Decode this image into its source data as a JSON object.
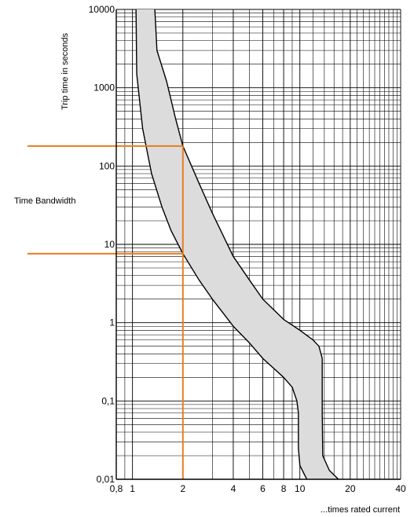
{
  "chart_data": {
    "type": "area",
    "title": "",
    "xlabel": "...times rated current",
    "ylabel": "Trip time in seconds",
    "annotation": "Time Bandwidth",
    "x_scale": "log",
    "y_scale": "log",
    "xlim": [
      0.8,
      40
    ],
    "ylim": [
      0.01,
      10000
    ],
    "grid": true,
    "x_tick_labels": [
      "0,8",
      "1",
      "2",
      "4",
      "6",
      "8",
      "10",
      "20",
      "40"
    ],
    "x_tick_values": [
      0.8,
      1,
      2,
      4,
      6,
      8,
      10,
      20,
      40
    ],
    "y_tick_labels": [
      "0,01",
      "0,1",
      "1",
      "10",
      "100",
      "1000",
      "10000"
    ],
    "y_tick_values": [
      0.01,
      0.1,
      1,
      10,
      100,
      1000,
      10000
    ],
    "band": {
      "upper": [
        [
          1.36,
          10000
        ],
        [
          1.4,
          3000
        ],
        [
          1.6,
          1200
        ],
        [
          1.8,
          420
        ],
        [
          2.0,
          180
        ],
        [
          2.5,
          60
        ],
        [
          3.0,
          25
        ],
        [
          4.0,
          7
        ],
        [
          5.0,
          3.5
        ],
        [
          6.0,
          2
        ],
        [
          8.0,
          1.1
        ],
        [
          10.0,
          0.8
        ],
        [
          12.0,
          0.6
        ],
        [
          13.0,
          0.5
        ],
        [
          13.6,
          0.35
        ],
        [
          13.6,
          0.07
        ],
        [
          13.7,
          0.02
        ],
        [
          15.0,
          0.013
        ],
        [
          17.0,
          0.01
        ]
      ],
      "lower": [
        [
          1.05,
          10000
        ],
        [
          1.06,
          1500
        ],
        [
          1.15,
          300
        ],
        [
          1.3,
          80
        ],
        [
          1.5,
          30
        ],
        [
          1.7,
          15
        ],
        [
          2.0,
          7.6
        ],
        [
          2.5,
          3.5
        ],
        [
          3.0,
          2
        ],
        [
          4.0,
          0.9
        ],
        [
          5.0,
          0.55
        ],
        [
          6.0,
          0.35
        ],
        [
          8.0,
          0.2
        ],
        [
          9.0,
          0.15
        ],
        [
          9.6,
          0.1
        ],
        [
          9.8,
          0.07
        ],
        [
          9.8,
          0.025
        ],
        [
          10.0,
          0.015
        ],
        [
          11.0,
          0.01
        ]
      ]
    },
    "markers": [
      {
        "x": 2,
        "y_upper": 180,
        "y_lower": 7.6,
        "color": "#e87d1e"
      }
    ],
    "band_fill": "#dcdcdc",
    "curve_color": "#000000"
  }
}
